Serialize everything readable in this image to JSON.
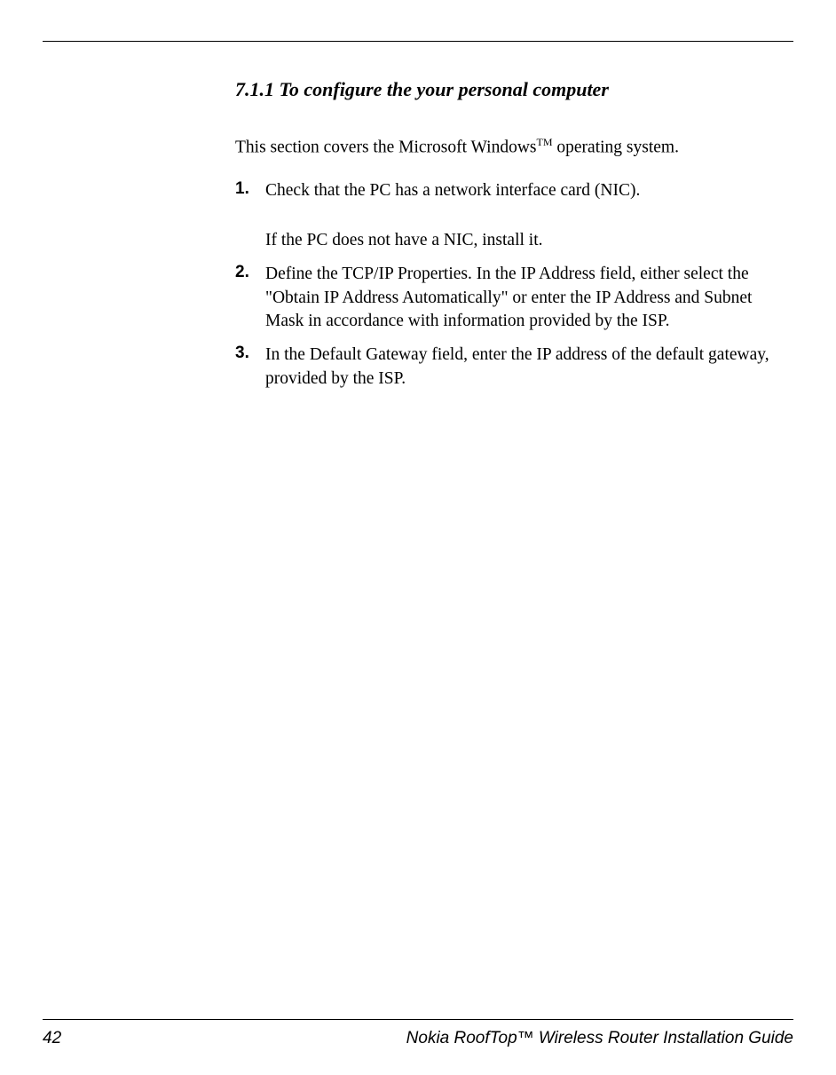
{
  "heading": "7.1.1 To configure the your personal computer",
  "intro_before": "This section covers the Microsoft Windows",
  "intro_sup": "TM",
  "intro_after": " operating system.",
  "steps": [
    {
      "num": "1.",
      "text": "Check that the PC has a network interface card (NIC).",
      "sub": "If the PC does not have a NIC, install it."
    },
    {
      "num": "2.",
      "text": "Define the TCP/IP Properties. In the IP Address field, either select the \"Obtain IP Address Automatically\" or enter the IP Address and Subnet Mask in accordance with information provided by the ISP."
    },
    {
      "num": "3.",
      "text": "In the Default Gateway field, enter the IP address of the default gateway, provided by the ISP."
    }
  ],
  "page_number": "42",
  "guide_title": "Nokia RoofTop™ Wireless Router Installation Guide",
  "colors": {
    "text": "#000000",
    "background": "#ffffff",
    "rule": "#000000"
  },
  "typography": {
    "heading_fontsize": 22,
    "body_fontsize": 19.5,
    "stepnum_fontsize": 19,
    "footer_fontsize": 19
  }
}
